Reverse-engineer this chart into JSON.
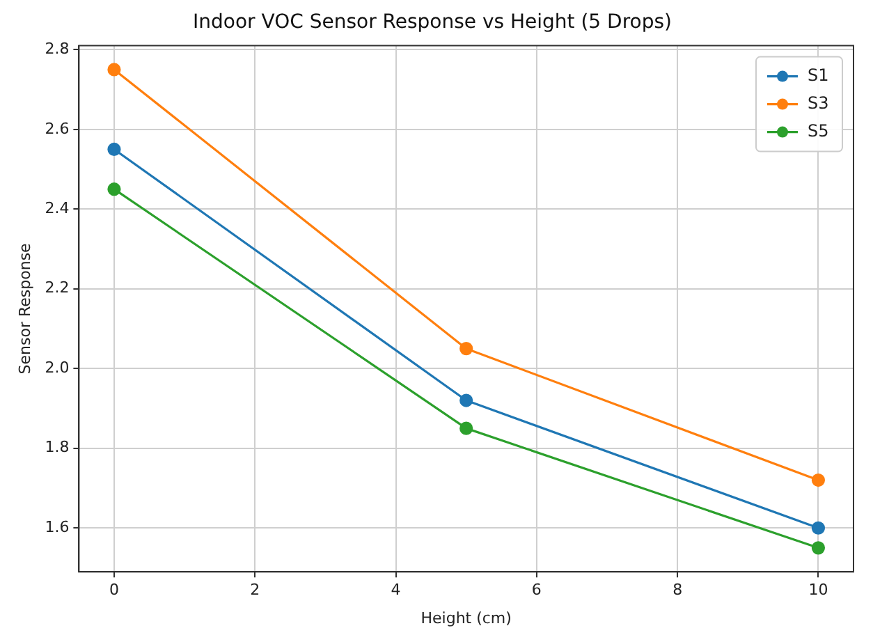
{
  "chart_data": {
    "type": "line",
    "title": "Indoor VOC Sensor Response vs Height (5 Drops)",
    "xlabel": "Height (cm)",
    "ylabel": "Sensor Response",
    "x": [
      0,
      5,
      10
    ],
    "series": [
      {
        "name": "S1",
        "color": "#1f77b4",
        "values": [
          2.55,
          1.92,
          1.6
        ]
      },
      {
        "name": "S3",
        "color": "#ff7f0e",
        "values": [
          2.75,
          2.05,
          1.72
        ]
      },
      {
        "name": "S5",
        "color": "#2ca02c",
        "values": [
          2.45,
          1.85,
          1.55
        ]
      }
    ],
    "xlim": [
      -0.5,
      10.5
    ],
    "xticks": [
      0,
      2,
      4,
      6,
      8,
      10
    ],
    "ylim": [
      1.49,
      2.81
    ],
    "yticks": [
      {
        "value": 1.6,
        "label": "1.6"
      },
      {
        "value": 1.8,
        "label": "1.8"
      },
      {
        "value": 2.0,
        "label": "2.0"
      },
      {
        "value": 2.2,
        "label": "2.2"
      },
      {
        "value": 2.4,
        "label": "2.4"
      },
      {
        "value": 2.6,
        "label": "2.6"
      },
      {
        "value": 2.8,
        "label": "2.8"
      }
    ],
    "grid": true,
    "legend": "top right",
    "marker": "circle",
    "line_style": "solid"
  }
}
